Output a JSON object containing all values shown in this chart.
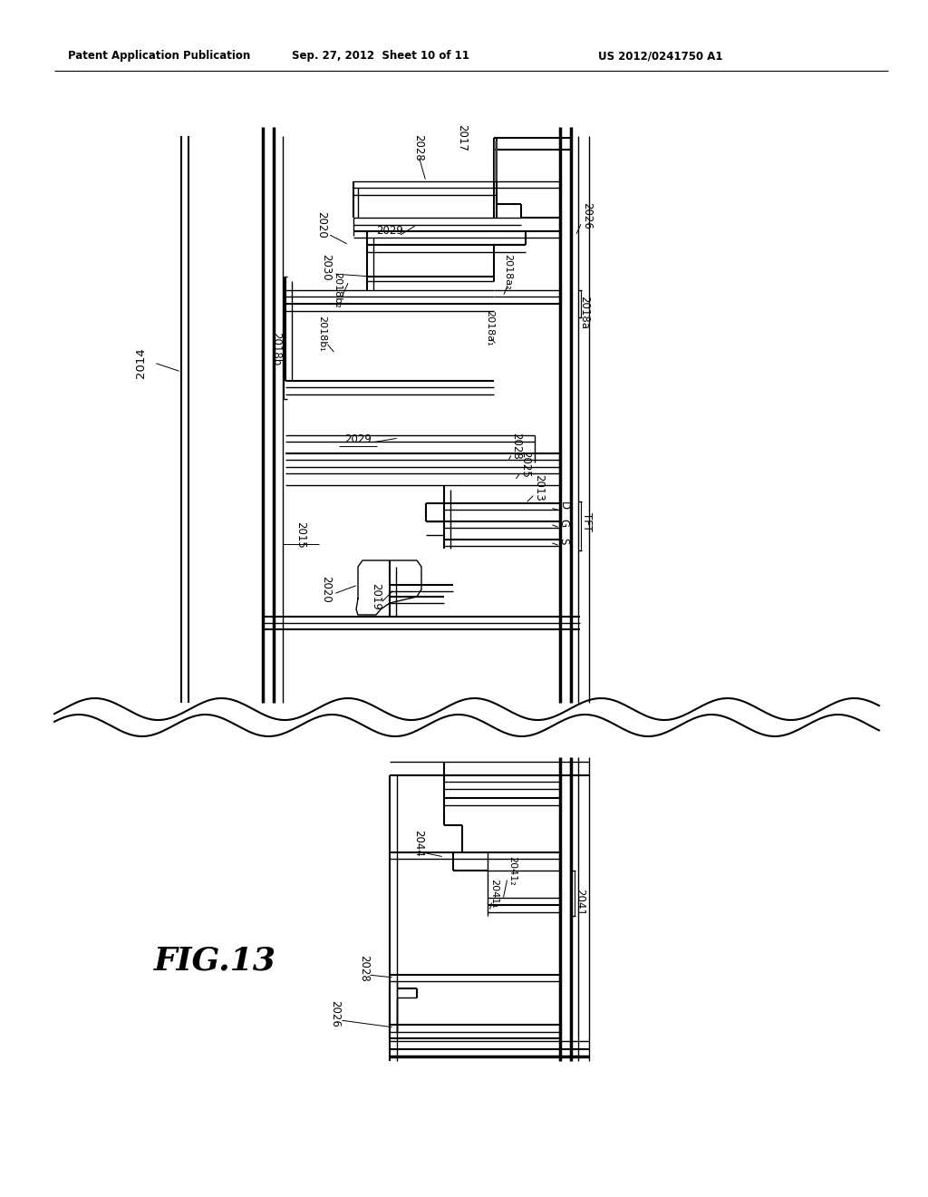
{
  "bg_color": "#ffffff",
  "header_left": "Patent Application Publication",
  "header_mid": "Sep. 27, 2012  Sheet 10 of 11",
  "header_right": "US 2012/0241750 A1",
  "figure_label": "FIG.13"
}
